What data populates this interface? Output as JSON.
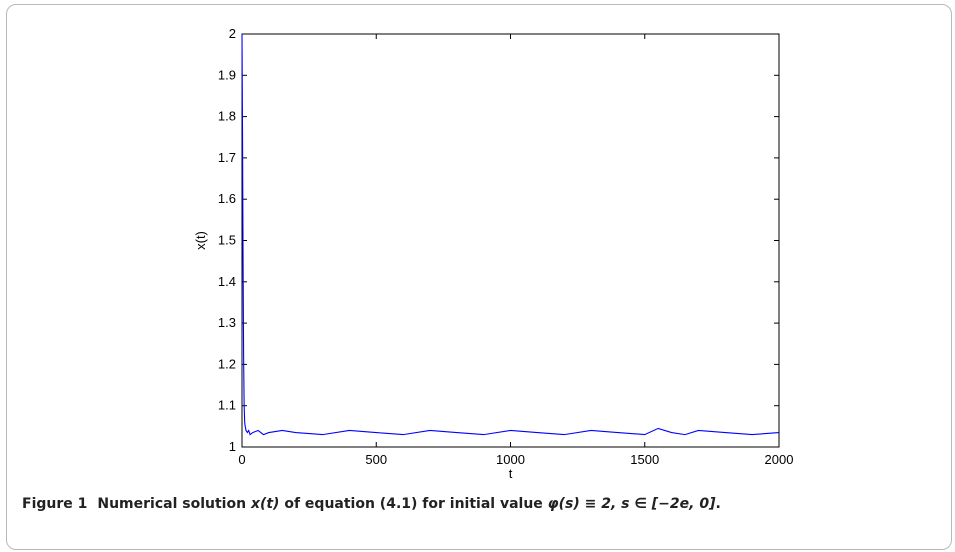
{
  "chart_data": {
    "type": "line",
    "xlabel": "t",
    "ylabel": "x(t)",
    "xlim": [
      0,
      2000
    ],
    "ylim": [
      1,
      2
    ],
    "x_ticks": [
      0,
      500,
      1000,
      1500,
      2000
    ],
    "y_ticks": [
      1,
      1.1,
      1.2,
      1.3,
      1.4,
      1.5,
      1.6,
      1.7,
      1.8,
      1.9,
      2
    ],
    "x_tick_labels": [
      "0",
      "500",
      "1000",
      "1500",
      "2000"
    ],
    "y_tick_labels": [
      "1",
      "1.1",
      "1.2",
      "1.3",
      "1.4",
      "1.5",
      "1.6",
      "1.7",
      "1.8",
      "1.9",
      "2"
    ],
    "grid": false,
    "line_color": "#0000ff",
    "series": [
      {
        "x": [
          0,
          2,
          4,
          6,
          8,
          10,
          12,
          15,
          20,
          25,
          30,
          40,
          60,
          80,
          100,
          150,
          200,
          300,
          400,
          500,
          600,
          700,
          800,
          900,
          1000,
          1100,
          1200,
          1300,
          1400,
          1500,
          1550,
          1600,
          1650,
          1700,
          1800,
          1900,
          2000
        ],
        "y": [
          2.0,
          1.75,
          1.45,
          1.22,
          1.1,
          1.06,
          1.05,
          1.04,
          1.035,
          1.04,
          1.03,
          1.035,
          1.04,
          1.03,
          1.035,
          1.04,
          1.035,
          1.03,
          1.04,
          1.035,
          1.03,
          1.04,
          1.035,
          1.03,
          1.04,
          1.035,
          1.03,
          1.04,
          1.035,
          1.03,
          1.045,
          1.035,
          1.03,
          1.04,
          1.035,
          1.03,
          1.035
        ]
      }
    ]
  },
  "caption": {
    "label": "Figure 1",
    "text_1": "Numerical solution ",
    "math_1": "x(t)",
    "text_2": " of equation (4.1) for initial value ",
    "math_2": "φ(s) ≡ 2, s ∈ [−2e, 0]",
    "text_3": "."
  }
}
